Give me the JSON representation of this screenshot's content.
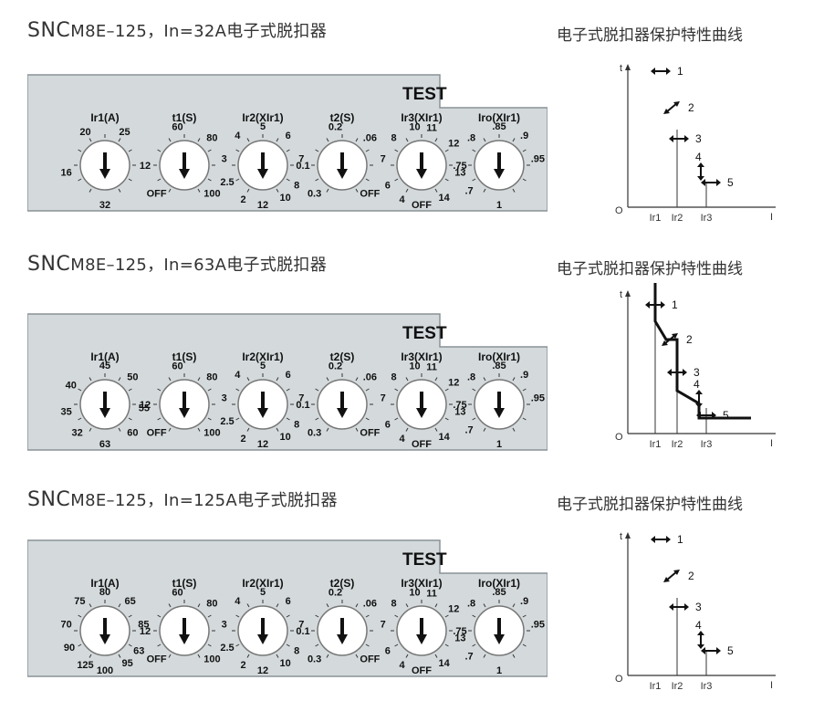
{
  "sections": [
    {
      "title_brand": "SNC",
      "title_model": "M8E–125，In=32A电子式脱扣器",
      "chart_title": "电子式脱扣器保护特性曲线",
      "test_label": "TEST",
      "dials": [
        {
          "label": "Ir1(A)",
          "marks": [
            "16",
            "20",
            "25",
            "32"
          ]
        },
        {
          "label": "t1(S)",
          "marks": [
            "12",
            "60",
            "80",
            "OFF",
            "100"
          ]
        },
        {
          "label": "Ir2(XIr1)",
          "marks": [
            "3",
            "4",
            "5",
            "6",
            "7",
            "8",
            "2.5",
            "2",
            "12",
            "10"
          ]
        },
        {
          "label": "t2(S)",
          "marks": [
            "0.1",
            "0.2",
            ".06",
            "0.3",
            "OFF"
          ]
        },
        {
          "label": "Ir3(XIr1)",
          "marks": [
            "8",
            "10",
            "11",
            "12",
            "7",
            "6",
            "4",
            "OFF",
            "14",
            "13"
          ]
        },
        {
          "label": "Iro(XIr1)",
          "marks": [
            ".8",
            ".85",
            ".9",
            ".95",
            ".75",
            ".7",
            "1"
          ]
        }
      ],
      "chart": {
        "axis_t": "t",
        "axis_o": "O",
        "axis_i": "I",
        "xticks": [
          "Ir1",
          "Ir2",
          "Ir3"
        ],
        "points": [
          "1",
          "2",
          "3",
          "4",
          "5"
        ],
        "curve": false
      }
    },
    {
      "title_brand": "SNC",
      "title_model": "M8E–125，In=63A电子式脱扣器",
      "chart_title": "电子式脱扣器保护特性曲线",
      "test_label": "TEST",
      "dials": [
        {
          "label": "Ir1(A)",
          "marks": [
            "40",
            "45",
            "50",
            "35",
            "55",
            "32",
            "60",
            "63"
          ]
        },
        {
          "label": "t1(S)",
          "marks": [
            "12",
            "60",
            "80",
            "OFF",
            "100"
          ]
        },
        {
          "label": "Ir2(XIr1)",
          "marks": [
            "3",
            "4",
            "5",
            "6",
            "7",
            "8",
            "2.5",
            "2",
            "12",
            "10"
          ]
        },
        {
          "label": "t2(S)",
          "marks": [
            "0.1",
            "0.2",
            ".06",
            "0.3",
            "OFF"
          ]
        },
        {
          "label": "Ir3(XIr1)",
          "marks": [
            "8",
            "10",
            "11",
            "12",
            "7",
            "6",
            "4",
            "OFF",
            "14",
            "13"
          ]
        },
        {
          "label": "Iro(XIr1)",
          "marks": [
            ".8",
            ".85",
            ".9",
            ".95",
            ".75",
            ".7",
            "1"
          ]
        }
      ],
      "chart": {
        "axis_t": "t",
        "axis_o": "O",
        "axis_i": "I",
        "xticks": [
          "Ir1",
          "Ir2",
          "Ir3"
        ],
        "points": [
          "1",
          "2",
          "3",
          "4",
          "5"
        ],
        "curve": true
      }
    },
    {
      "title_brand": "SNC",
      "title_model": "M8E–125，In=125A电子式脱扣器",
      "chart_title": "电子式脱扣器保护特性曲线",
      "test_label": "TEST",
      "dials": [
        {
          "label": "Ir1(A)",
          "marks": [
            "70",
            "75",
            "80",
            "65",
            "85",
            "63",
            "90",
            "125",
            "100",
            "95"
          ]
        },
        {
          "label": "t1(S)",
          "marks": [
            "12",
            "60",
            "80",
            "OFF",
            "100"
          ]
        },
        {
          "label": "Ir2(XIr1)",
          "marks": [
            "3",
            "4",
            "5",
            "6",
            "7",
            "8",
            "2.5",
            "2",
            "12",
            "10"
          ]
        },
        {
          "label": "t2(S)",
          "marks": [
            "0.1",
            "0.2",
            ".06",
            "0.3",
            "OFF"
          ]
        },
        {
          "label": "Ir3(XIr1)",
          "marks": [
            "8",
            "10",
            "11",
            "12",
            "7",
            "6",
            "4",
            "OFF",
            "14",
            "13"
          ]
        },
        {
          "label": "Iro(XIr1)",
          "marks": [
            ".8",
            ".85",
            ".9",
            ".95",
            ".75",
            ".7",
            "1"
          ]
        }
      ],
      "chart": {
        "axis_t": "t",
        "axis_o": "O",
        "axis_i": "I",
        "xticks": [
          "Ir1",
          "Ir2",
          "Ir3"
        ],
        "points": [
          "1",
          "2",
          "3",
          "4",
          "5"
        ],
        "curve": false
      }
    }
  ]
}
